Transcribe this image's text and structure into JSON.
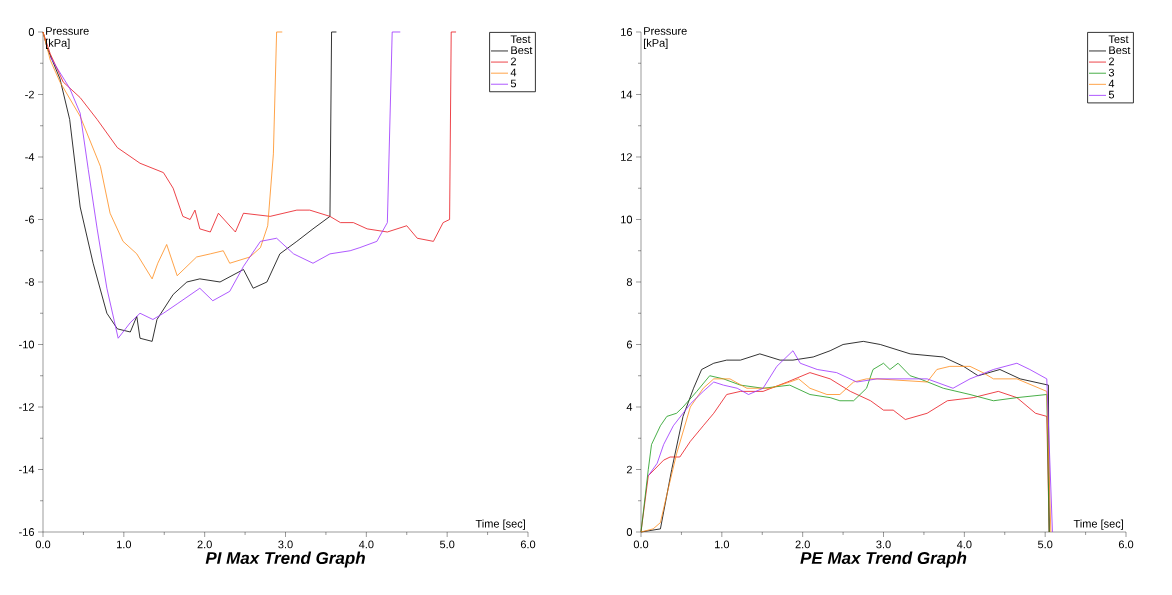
{
  "chart_data": [
    {
      "type": "line",
      "title": "PI Max Trend Graph",
      "xlabel": "Time  [sec]",
      "ylabel": "Pressure [kPa]",
      "legend_title": "Test",
      "legend": "top right",
      "xlim": [
        0,
        6
      ],
      "ylim": [
        -16,
        0
      ],
      "xticks": [
        {
          "value": 0,
          "label": "0.0"
        },
        {
          "value": 1,
          "label": "1.0"
        },
        {
          "value": 2,
          "label": "2.0"
        },
        {
          "value": 3,
          "label": "3.0"
        },
        {
          "value": 4,
          "label": "4.0"
        },
        {
          "value": 5,
          "label": "5.0"
        },
        {
          "value": 6,
          "label": "6.0"
        }
      ],
      "yticks": [
        -16,
        -14,
        -12,
        -10,
        -8,
        -6,
        -4,
        -2,
        0
      ],
      "series": [
        {
          "name": "Best",
          "color": "#000000",
          "x": [
            0,
            0.05,
            0.21,
            0.33,
            0.46,
            0.62,
            0.79,
            0.92,
            1.08,
            1.16,
            1.2,
            1.35,
            1.41,
            1.61,
            1.78,
            1.94,
            2.19,
            2.48,
            2.6,
            2.77,
            2.93,
            3.14,
            3.34,
            3.55,
            3.57,
            3.63
          ],
          "values": [
            0,
            -0.5,
            -1.5,
            -2.8,
            -5.6,
            -7.4,
            -9.0,
            -9.5,
            -9.6,
            -9.1,
            -9.8,
            -9.9,
            -9.2,
            -8.4,
            -8.0,
            -7.9,
            -8.0,
            -7.6,
            -8.2,
            -8.0,
            -7.1,
            -6.7,
            -6.3,
            -5.9,
            0,
            0
          ]
        },
        {
          "name": "2",
          "color": "#e8141c",
          "x": [
            0,
            0.09,
            0.25,
            0.46,
            0.67,
            0.92,
            1.2,
            1.49,
            1.61,
            1.73,
            1.82,
            1.88,
            1.94,
            2.07,
            2.17,
            2.38,
            2.48,
            2.81,
            3.14,
            3.3,
            3.55,
            3.68,
            3.84,
            4.01,
            4.26,
            4.5,
            4.63,
            4.83,
            4.95,
            5.03,
            5.05,
            5.11
          ],
          "values": [
            0,
            -0.7,
            -1.6,
            -2.1,
            -2.8,
            -3.7,
            -4.2,
            -4.5,
            -5.0,
            -5.9,
            -6.0,
            -5.7,
            -6.3,
            -6.4,
            -5.8,
            -6.4,
            -5.8,
            -5.9,
            -5.7,
            -5.7,
            -5.9,
            -6.1,
            -6.1,
            -6.3,
            -6.4,
            -6.2,
            -6.6,
            -6.7,
            -6.1,
            -6.0,
            0,
            0
          ]
        },
        {
          "name": "4",
          "color": "#ff8c1a",
          "x": [
            0,
            0.09,
            0.21,
            0.46,
            0.71,
            0.83,
            0.99,
            1.16,
            1.35,
            1.42,
            1.53,
            1.66,
            1.78,
            1.9,
            2.07,
            2.23,
            2.31,
            2.56,
            2.69,
            2.78,
            2.85,
            2.89,
            2.96
          ],
          "values": [
            0,
            -0.9,
            -1.6,
            -2.7,
            -4.3,
            -5.8,
            -6.7,
            -7.1,
            -7.9,
            -7.4,
            -6.8,
            -7.8,
            -7.5,
            -7.2,
            -7.1,
            -7.0,
            -7.4,
            -7.2,
            -6.9,
            -6.2,
            -3.9,
            0,
            0
          ]
        },
        {
          "name": "5",
          "color": "#9b30ff",
          "x": [
            0.09,
            0.33,
            0.46,
            0.56,
            0.67,
            0.79,
            0.93,
            1.08,
            1.2,
            1.36,
            1.49,
            1.66,
            1.94,
            2.1,
            2.31,
            2.48,
            2.69,
            2.89,
            3.1,
            3.34,
            3.55,
            3.8,
            3.92,
            4.13,
            4.26,
            4.32,
            4.42
          ],
          "values": [
            -0.8,
            -1.8,
            -2.6,
            -4.4,
            -6.3,
            -8.2,
            -9.8,
            -9.3,
            -9.0,
            -9.2,
            -9.0,
            -8.7,
            -8.2,
            -8.6,
            -8.3,
            -7.5,
            -6.7,
            -6.6,
            -7.1,
            -7.4,
            -7.1,
            -7.0,
            -6.9,
            -6.7,
            -6.1,
            0,
            0
          ]
        }
      ]
    },
    {
      "type": "line",
      "title": "PE Max Trend Graph",
      "xlabel": "Time  [sec]",
      "ylabel": "Pressure [kPa]",
      "legend_title": "Test",
      "legend": "top right",
      "xlim": [
        0,
        6
      ],
      "ylim": [
        0,
        16
      ],
      "xticks": [
        {
          "value": 0,
          "label": "0.0"
        },
        {
          "value": 1,
          "label": "1.0"
        },
        {
          "value": 2,
          "label": "2.0"
        },
        {
          "value": 3,
          "label": "3.0"
        },
        {
          "value": 4,
          "label": "4.0"
        },
        {
          "value": 5,
          "label": "5.0"
        },
        {
          "value": 6,
          "label": "6.0"
        }
      ],
      "yticks": [
        0,
        2,
        4,
        6,
        8,
        10,
        12,
        14,
        16
      ],
      "series": [
        {
          "name": "Best",
          "color": "#000000",
          "x": [
            0,
            0.24,
            0.38,
            0.52,
            0.65,
            0.75,
            0.9,
            1.06,
            1.23,
            1.47,
            1.72,
            1.88,
            2.13,
            2.34,
            2.5,
            2.75,
            2.96,
            3.33,
            3.74,
            3.99,
            4.17,
            4.44,
            4.69,
            5.04,
            5.05
          ],
          "values": [
            0,
            0.1,
            2.0,
            3.7,
            4.6,
            5.2,
            5.4,
            5.5,
            5.5,
            5.7,
            5.5,
            5.5,
            5.6,
            5.8,
            6.0,
            6.1,
            6.0,
            5.7,
            5.6,
            5.3,
            5.0,
            5.2,
            4.9,
            4.7,
            0
          ]
        },
        {
          "name": "2",
          "color": "#e8141c",
          "x": [
            0,
            0.09,
            0.28,
            0.36,
            0.48,
            0.61,
            0.77,
            0.9,
            1.06,
            1.23,
            1.51,
            1.81,
            2.09,
            2.34,
            2.59,
            2.84,
            3.0,
            3.12,
            3.27,
            3.54,
            3.79,
            4.11,
            4.42,
            4.65,
            4.88,
            5.02,
            5.05
          ],
          "values": [
            0,
            1.8,
            2.3,
            2.4,
            2.4,
            2.9,
            3.4,
            3.8,
            4.4,
            4.5,
            4.5,
            4.8,
            5.1,
            4.9,
            4.5,
            4.2,
            3.9,
            3.9,
            3.6,
            3.8,
            4.2,
            4.3,
            4.5,
            4.3,
            3.8,
            3.7,
            0
          ]
        },
        {
          "name": "3",
          "color": "#1a9a1a",
          "x": [
            0,
            0.09,
            0.13,
            0.24,
            0.32,
            0.44,
            0.52,
            0.69,
            0.85,
            1.02,
            1.23,
            1.51,
            1.84,
            2.09,
            2.34,
            2.46,
            2.63,
            2.79,
            2.87,
            3.0,
            3.08,
            3.18,
            3.33,
            3.45,
            3.74,
            4.07,
            4.36,
            4.65,
            5.02,
            5.05
          ],
          "values": [
            0,
            2.0,
            2.8,
            3.4,
            3.7,
            3.8,
            4.0,
            4.5,
            5.0,
            4.9,
            4.7,
            4.6,
            4.7,
            4.4,
            4.3,
            4.2,
            4.2,
            4.6,
            5.2,
            5.4,
            5.2,
            5.4,
            5.0,
            4.9,
            4.6,
            4.4,
            4.2,
            4.3,
            4.4,
            0
          ]
        },
        {
          "name": "4",
          "color": "#ff8c1a",
          "x": [
            0,
            0.15,
            0.24,
            0.32,
            0.44,
            0.61,
            0.77,
            0.9,
            1.1,
            1.31,
            1.6,
            1.84,
            1.95,
            2.09,
            2.3,
            2.46,
            2.63,
            2.79,
            2.92,
            3.54,
            3.66,
            3.82,
            4.07,
            4.23,
            4.36,
            4.65,
            5.02,
            5.07
          ],
          "values": [
            0,
            0.1,
            0.3,
            1.2,
            2.5,
            4.0,
            4.6,
            4.9,
            4.9,
            4.6,
            4.6,
            4.8,
            4.9,
            4.6,
            4.4,
            4.4,
            4.8,
            4.9,
            4.9,
            4.8,
            5.2,
            5.3,
            5.3,
            5.1,
            4.9,
            4.9,
            4.5,
            0
          ]
        },
        {
          "name": "5",
          "color": "#9b30ff",
          "x": [
            0.09,
            0.2,
            0.28,
            0.4,
            0.61,
            0.77,
            0.9,
            1.02,
            1.19,
            1.33,
            1.51,
            1.68,
            1.88,
            1.97,
            2.18,
            2.42,
            2.67,
            2.92,
            3.54,
            3.86,
            4.07,
            4.36,
            4.65,
            4.81,
            5.02,
            5.09
          ],
          "values": [
            1.8,
            2.2,
            2.8,
            3.4,
            4.1,
            4.5,
            4.8,
            4.7,
            4.6,
            4.4,
            4.6,
            5.3,
            5.8,
            5.4,
            5.2,
            5.1,
            4.8,
            4.9,
            4.9,
            4.6,
            4.9,
            5.2,
            5.4,
            5.2,
            4.9,
            0
          ]
        }
      ]
    }
  ]
}
